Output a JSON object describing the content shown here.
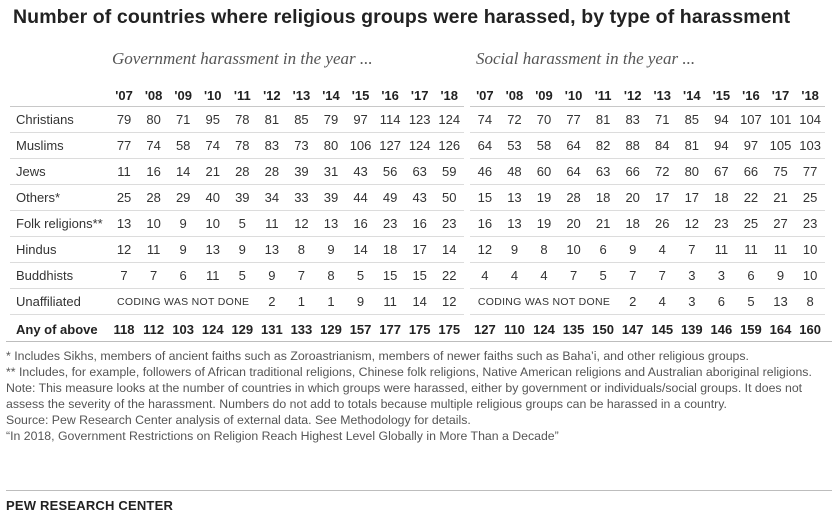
{
  "title": "Number of countries where religious groups were harassed, by type of harassment",
  "panels": {
    "government": "Government harassment in the year ...",
    "social": "Social harassment in the year ..."
  },
  "chart_data": {
    "type": "table",
    "title": "Number of countries where religious groups were harassed, by type of harassment",
    "years": [
      "'07",
      "'08",
      "'09",
      "'10",
      "'11",
      "'12",
      "'13",
      "'14",
      "'15",
      "'16",
      "'17",
      "'18"
    ],
    "coding_note": "CODING WAS NOT DONE",
    "rows": [
      {
        "label": "Christians",
        "government": [
          79,
          80,
          71,
          95,
          78,
          81,
          85,
          79,
          97,
          114,
          123,
          124
        ],
        "social": [
          74,
          72,
          70,
          77,
          81,
          83,
          71,
          85,
          94,
          107,
          101,
          104
        ]
      },
      {
        "label": "Muslims",
        "government": [
          77,
          74,
          58,
          74,
          78,
          83,
          73,
          80,
          106,
          127,
          124,
          126
        ],
        "social": [
          64,
          53,
          58,
          64,
          82,
          88,
          84,
          81,
          94,
          97,
          105,
          103
        ]
      },
      {
        "label": "Jews",
        "government": [
          11,
          16,
          14,
          21,
          28,
          28,
          39,
          31,
          43,
          56,
          63,
          59
        ],
        "social": [
          46,
          48,
          60,
          64,
          63,
          66,
          72,
          80,
          67,
          66,
          75,
          77
        ]
      },
      {
        "label": "Others*",
        "government": [
          25,
          28,
          29,
          40,
          39,
          34,
          33,
          39,
          44,
          49,
          43,
          50
        ],
        "social": [
          15,
          13,
          19,
          28,
          18,
          20,
          17,
          17,
          18,
          22,
          21,
          25
        ]
      },
      {
        "label": "Folk religions**",
        "government": [
          13,
          10,
          9,
          10,
          5,
          11,
          12,
          13,
          16,
          23,
          16,
          23
        ],
        "social": [
          16,
          13,
          19,
          20,
          21,
          18,
          26,
          12,
          23,
          25,
          27,
          23
        ]
      },
      {
        "label": "Hindus",
        "government": [
          12,
          11,
          9,
          13,
          9,
          13,
          8,
          9,
          14,
          18,
          17,
          14
        ],
        "social": [
          12,
          9,
          8,
          10,
          6,
          9,
          4,
          7,
          11,
          11,
          11,
          10
        ]
      },
      {
        "label": "Buddhists",
        "government": [
          7,
          7,
          6,
          11,
          5,
          9,
          7,
          8,
          5,
          15,
          15,
          22
        ],
        "social": [
          4,
          4,
          4,
          7,
          5,
          7,
          7,
          3,
          3,
          6,
          9,
          10
        ]
      },
      {
        "label": "Unaffiliated",
        "government": [
          null,
          null,
          null,
          null,
          null,
          2,
          1,
          1,
          9,
          11,
          14,
          12
        ],
        "social": [
          null,
          null,
          null,
          null,
          null,
          2,
          4,
          3,
          6,
          5,
          13,
          8
        ]
      },
      {
        "label": "Any of above",
        "government": [
          118,
          112,
          103,
          124,
          129,
          131,
          133,
          129,
          157,
          177,
          175,
          175
        ],
        "social": [
          127,
          110,
          124,
          135,
          150,
          147,
          145,
          139,
          146,
          159,
          164,
          160
        ],
        "bold": true
      }
    ]
  },
  "notes": {
    "n1": "* Includes Sikhs, members of ancient faiths such as Zoroastrianism, members of newer faiths such as Baha’i, and other religious groups.",
    "n2": "** Includes, for example, followers of African traditional religions, Chinese folk religions, Native American religions and Australian aboriginal religions.",
    "n3": "Note: This measure looks at the number of countries in which groups were harassed, either by government or individuals/social groups. It does not assess the severity of the harassment. Numbers do not add to totals because multiple religious groups can be harassed in a country.",
    "n4": "Source: Pew Research Center analysis of external data. See Methodology for details.",
    "n5": "“In 2018, Government Restrictions on Religion Reach Highest Level Globally in More Than a Decade”"
  },
  "source_name": "PEW RESEARCH CENTER",
  "colors": {
    "text": "#333333",
    "rule": "#dcdcdc",
    "panel_title": "#555555"
  }
}
